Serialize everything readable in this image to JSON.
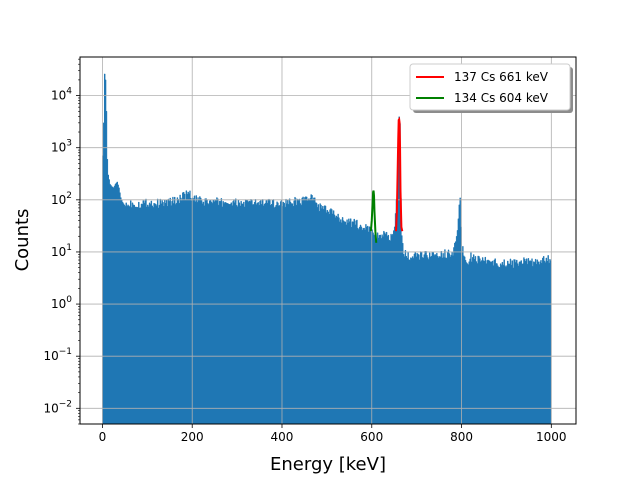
{
  "chart_data": {
    "type": "bar",
    "title": "",
    "xlabel": "Energy [keV]",
    "ylabel": "Counts",
    "xlim": [
      -50,
      1055
    ],
    "ylim": [
      0.005,
      55000
    ],
    "yscale": "log",
    "grid": true,
    "legend_position": "top-right",
    "x_ticks": [
      "0",
      "200",
      "400",
      "600",
      "800",
      "1000"
    ],
    "y_ticks": [
      {
        "base": "10",
        "exp": "−2"
      },
      {
        "base": "10",
        "exp": "−1"
      },
      {
        "base": "10",
        "exp": "0"
      },
      {
        "base": "10",
        "exp": "1"
      },
      {
        "base": "10",
        "exp": "2"
      },
      {
        "base": "10",
        "exp": "3"
      },
      {
        "base": "10",
        "exp": "4"
      }
    ],
    "histogram": {
      "name": "",
      "color": "#1f77b4",
      "bin_width": 2,
      "points": [
        [
          0,
          700
        ],
        [
          2,
          3000
        ],
        [
          4,
          26000
        ],
        [
          6,
          20000
        ],
        [
          8,
          5000
        ],
        [
          10,
          600
        ],
        [
          12,
          300
        ],
        [
          16,
          200
        ],
        [
          20,
          180
        ],
        [
          24,
          170
        ],
        [
          28,
          200
        ],
        [
          32,
          220
        ],
        [
          36,
          170
        ],
        [
          40,
          110
        ],
        [
          44,
          90
        ],
        [
          50,
          75
        ],
        [
          60,
          85
        ],
        [
          80,
          82
        ],
        [
          100,
          88
        ],
        [
          120,
          85
        ],
        [
          140,
          88
        ],
        [
          160,
          95
        ],
        [
          180,
          115
        ],
        [
          190,
          135
        ],
        [
          200,
          105
        ],
        [
          220,
          92
        ],
        [
          260,
          90
        ],
        [
          300,
          85
        ],
        [
          340,
          88
        ],
        [
          380,
          85
        ],
        [
          420,
          90
        ],
        [
          440,
          95
        ],
        [
          460,
          110
        ],
        [
          470,
          100
        ],
        [
          480,
          75
        ],
        [
          500,
          60
        ],
        [
          520,
          50
        ],
        [
          540,
          40
        ],
        [
          560,
          35
        ],
        [
          580,
          30
        ],
        [
          600,
          25
        ],
        [
          610,
          20
        ],
        [
          620,
          22
        ],
        [
          640,
          18
        ],
        [
          650,
          28
        ],
        [
          656,
          150
        ],
        [
          660,
          3500
        ],
        [
          662,
          3200
        ],
        [
          664,
          100
        ],
        [
          666,
          20
        ],
        [
          670,
          10
        ],
        [
          680,
          8
        ],
        [
          700,
          8
        ],
        [
          720,
          9
        ],
        [
          740,
          8
        ],
        [
          760,
          9
        ],
        [
          780,
          10
        ],
        [
          790,
          30
        ],
        [
          796,
          100
        ],
        [
          800,
          12
        ],
        [
          810,
          6
        ],
        [
          820,
          8
        ],
        [
          840,
          7
        ],
        [
          860,
          7
        ],
        [
          880,
          6
        ],
        [
          900,
          6
        ],
        [
          920,
          6
        ],
        [
          940,
          7
        ],
        [
          960,
          6
        ],
        [
          980,
          7
        ],
        [
          1000,
          7
        ],
        [
          1001,
          0
        ]
      ]
    },
    "series": [
      {
        "name": "137 Cs 661 keV",
        "color": "#ff0000",
        "x": [
          654,
          656,
          658,
          659,
          660,
          661,
          662,
          663,
          664,
          666,
          668
        ],
        "y": [
          25,
          60,
          500,
          1500,
          3400,
          3500,
          3000,
          1000,
          150,
          30,
          25
        ]
      },
      {
        "name": "134 Cs 604 keV",
        "color": "#008000",
        "x": [
          598,
          600,
          602,
          603,
          604,
          605,
          606,
          608,
          610
        ],
        "y": [
          25,
          40,
          90,
          140,
          150,
          120,
          60,
          25,
          15
        ]
      }
    ]
  }
}
